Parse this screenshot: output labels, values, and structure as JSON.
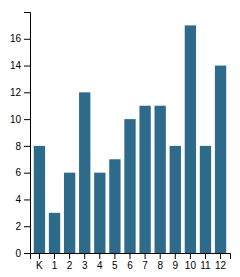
{
  "chart_data": {
    "type": "bar",
    "categories": [
      "K",
      "1",
      "2",
      "3",
      "4",
      "5",
      "6",
      "7",
      "8",
      "9",
      "10",
      "11",
      "12"
    ],
    "values": [
      8,
      3,
      6,
      12,
      6,
      7,
      10,
      11,
      11,
      8,
      17,
      8,
      14
    ],
    "color": "#2e6b8a",
    "ylim": [
      0,
      18
    ],
    "yticks": [
      0,
      2,
      4,
      6,
      8,
      10,
      12,
      14,
      16
    ],
    "grid": false
  }
}
